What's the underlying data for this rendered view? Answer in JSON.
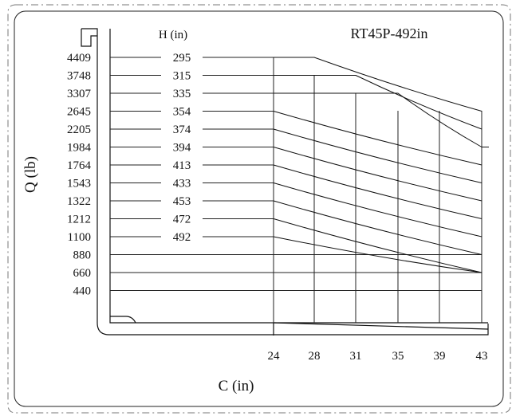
{
  "chart_data": {
    "type": "line",
    "title": "RT45P-492in",
    "xlabel": "C (in)",
    "ylabel": "Q (lb)",
    "height_header": "H (in)",
    "x_ticks": [
      24,
      28,
      31,
      35,
      39,
      43
    ],
    "y_ticks": [
      4409,
      3748,
      3307,
      2645,
      2205,
      1984,
      1764,
      1543,
      1322,
      1212,
      1100,
      880,
      660,
      440
    ],
    "height_labels": [
      "295",
      "315",
      "335",
      "354",
      "374",
      "394",
      "413",
      "433",
      "453",
      "472",
      "492"
    ],
    "series": [
      {
        "name": "295",
        "x": [
          24,
          28,
          43
        ],
        "y": [
          4409,
          4409,
          2645
        ]
      },
      {
        "name": "315",
        "x": [
          24,
          31,
          43
        ],
        "y": [
          3748,
          3748,
          2205
        ]
      },
      {
        "name": "335",
        "x": [
          24,
          35,
          43
        ],
        "y": [
          3307,
          3307,
          1984
        ]
      },
      {
        "name": "354",
        "x": [
          24,
          43
        ],
        "y": [
          2645,
          1764
        ]
      },
      {
        "name": "374",
        "x": [
          24,
          43
        ],
        "y": [
          2205,
          1543
        ]
      },
      {
        "name": "394",
        "x": [
          24,
          43
        ],
        "y": [
          1984,
          1322
        ]
      },
      {
        "name": "413",
        "x": [
          24,
          43
        ],
        "y": [
          1764,
          1212
        ]
      },
      {
        "name": "433",
        "x": [
          24,
          43
        ],
        "y": [
          1543,
          1100
        ]
      },
      {
        "name": "453",
        "x": [
          24,
          43
        ],
        "y": [
          1322,
          880
        ]
      },
      {
        "name": "472",
        "x": [
          24,
          43
        ],
        "y": [
          1212,
          660
        ]
      },
      {
        "name": "492",
        "x": [
          24,
          43
        ],
        "y": [
          1100,
          660
        ]
      }
    ]
  }
}
